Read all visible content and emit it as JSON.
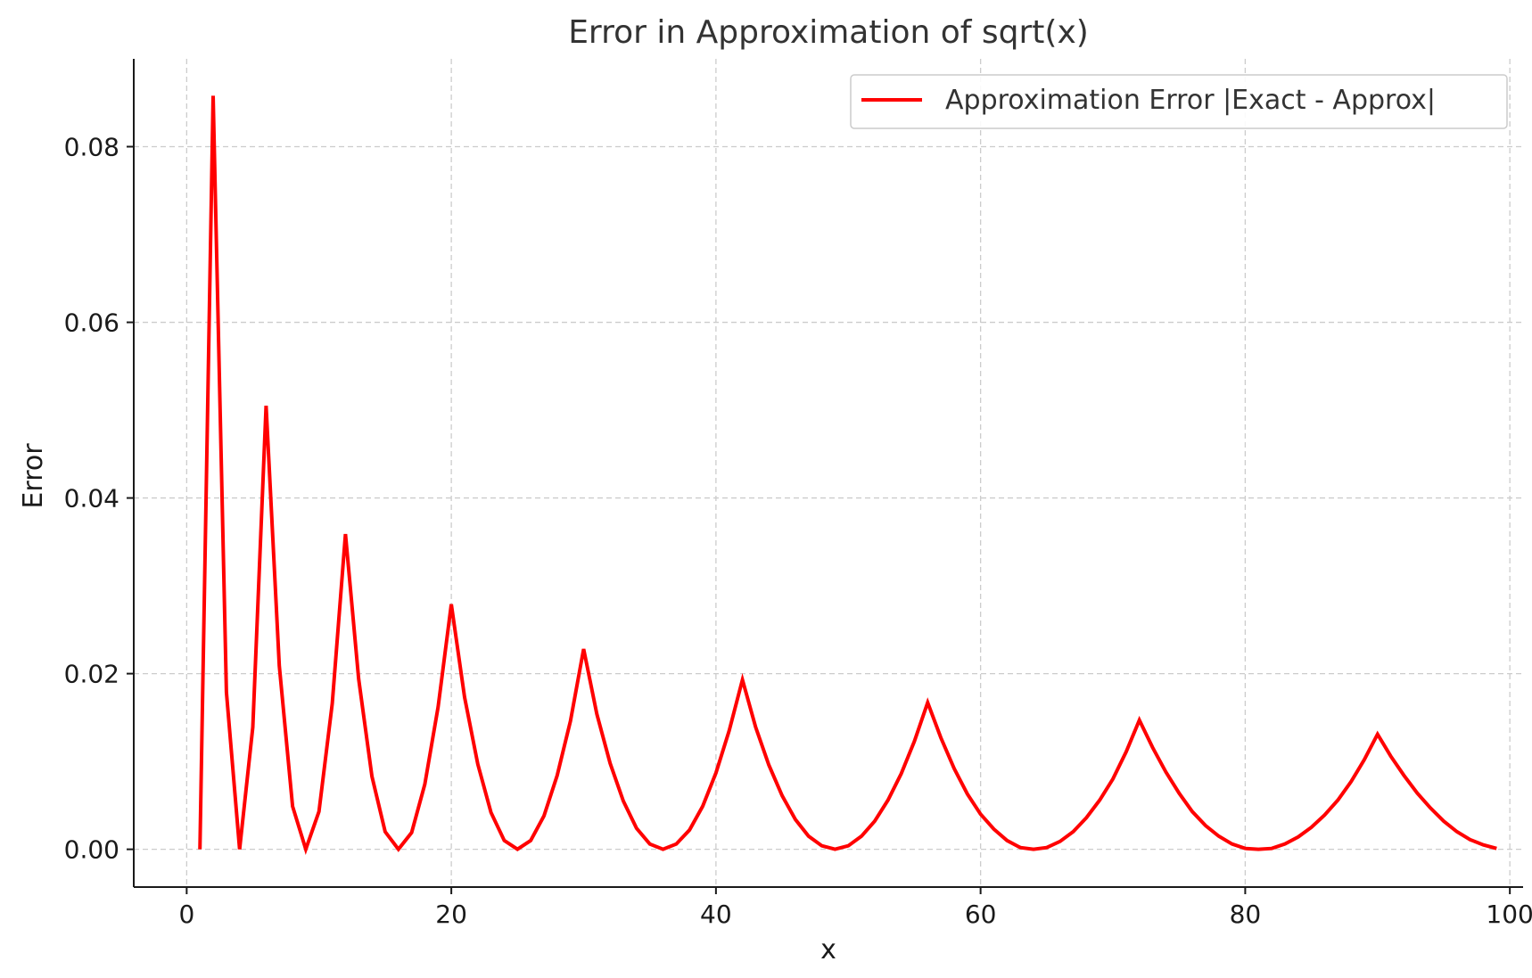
{
  "chart_data": {
    "type": "line",
    "title": "Error in Approximation of sqrt(x)",
    "xlabel": "x",
    "ylabel": "Error",
    "xlim": [
      -4,
      101
    ],
    "ylim": [
      -0.0043,
      0.09
    ],
    "xticks": [
      0,
      20,
      40,
      60,
      80,
      100
    ],
    "yticks": [
      0.0,
      0.02,
      0.04,
      0.06,
      0.08
    ],
    "ytick_labels": [
      "0.00",
      "0.02",
      "0.04",
      "0.06",
      "0.08"
    ],
    "grid": true,
    "grid_style": "dashed",
    "legend_position": "top-right",
    "series": [
      {
        "name": "Approximation Error |Exact - Approx|",
        "color": "#ff0000",
        "x": [
          1,
          2,
          3,
          4,
          5,
          6,
          7,
          8,
          9,
          10,
          11,
          12,
          13,
          14,
          15,
          16,
          17,
          18,
          19,
          20,
          21,
          22,
          23,
          24,
          25,
          26,
          27,
          28,
          29,
          30,
          31,
          32,
          33,
          34,
          35,
          36,
          37,
          38,
          39,
          40,
          41,
          42,
          43,
          44,
          45,
          46,
          47,
          48,
          49,
          50,
          51,
          52,
          53,
          54,
          55,
          56,
          57,
          58,
          59,
          60,
          61,
          62,
          63,
          64,
          65,
          66,
          67,
          68,
          69,
          70,
          71,
          72,
          73,
          74,
          75,
          76,
          77,
          78,
          79,
          80,
          81,
          82,
          83,
          84,
          85,
          86,
          87,
          88,
          89,
          90,
          91,
          92,
          93,
          94,
          95,
          96,
          97,
          98,
          99
        ],
        "y": [
          0.0,
          0.0858,
          0.0179,
          0.0,
          0.0139,
          0.0505,
          0.0209,
          0.0049,
          0.0,
          0.0043,
          0.0166,
          0.0359,
          0.0194,
          0.0083,
          0.002,
          0.0,
          0.0019,
          0.0074,
          0.0162,
          0.0279,
          0.0173,
          0.0097,
          0.0042,
          0.001,
          0.0,
          0.001,
          0.0038,
          0.0084,
          0.0146,
          0.0228,
          0.0154,
          0.0098,
          0.0055,
          0.0024,
          0.0006,
          0.0,
          0.0006,
          0.0022,
          0.0049,
          0.0087,
          0.0135,
          0.0193,
          0.0139,
          0.0096,
          0.0061,
          0.0034,
          0.0015,
          0.0004,
          0.0,
          0.0004,
          0.0015,
          0.0032,
          0.0056,
          0.0086,
          0.0123,
          0.0167,
          0.0127,
          0.0092,
          0.0063,
          0.004,
          0.0023,
          0.001,
          0.0002,
          0.0,
          0.0002,
          0.0009,
          0.002,
          0.0036,
          0.0056,
          0.008,
          0.0111,
          0.0147,
          0.0116,
          0.0088,
          0.0064,
          0.0043,
          0.0027,
          0.0015,
          0.0006,
          0.0001,
          0.0,
          0.0001,
          0.0006,
          0.0014,
          0.0025,
          0.0039,
          0.0056,
          0.0077,
          0.0102,
          0.0131,
          0.0106,
          0.0084,
          0.0064,
          0.0047,
          0.0032,
          0.002,
          0.0011,
          0.0005,
          0.0001
        ]
      }
    ]
  }
}
